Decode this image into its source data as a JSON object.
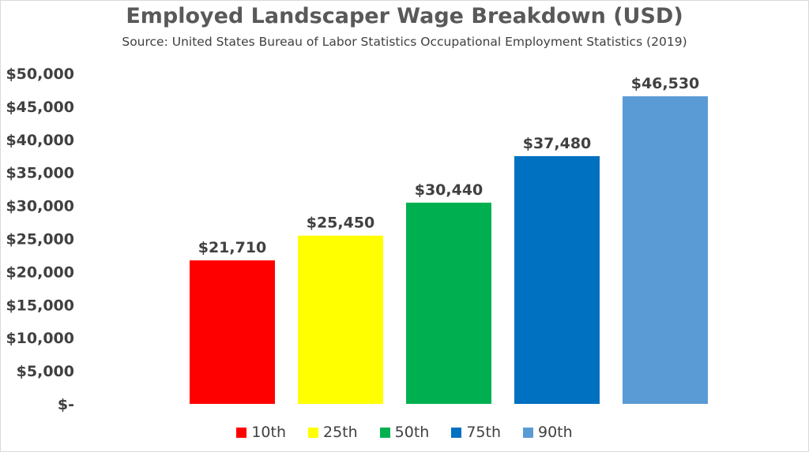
{
  "chart_data": {
    "type": "bar",
    "title": "Employed Landscaper Wage Breakdown (USD)",
    "subtitle": "Source: United States Bureau of Labor Statistics Occupational Employment Statistics (2019)",
    "categories": [
      "10th",
      "25th",
      "50th",
      "75th",
      "90th"
    ],
    "values": [
      21710,
      25450,
      30440,
      37480,
      46530
    ],
    "data_labels": [
      "$21,710",
      "$25,450",
      "$30,440",
      "$37,480",
      "$46,530"
    ],
    "colors": [
      "#ff0000",
      "#ffff00",
      "#00b050",
      "#0070c0",
      "#5b9bd5"
    ],
    "ylim": [
      0,
      50000
    ],
    "yticks": [
      0,
      5000,
      10000,
      15000,
      20000,
      25000,
      30000,
      35000,
      40000,
      45000,
      50000
    ],
    "ytick_labels": [
      "$-",
      "$5,000",
      "$10,000",
      "$15,000",
      "$20,000",
      "$25,000",
      "$30,000",
      "$35,000",
      "$40,000",
      "$45,000",
      "$50,000"
    ],
    "grid": false,
    "legend_position": "bottom"
  }
}
